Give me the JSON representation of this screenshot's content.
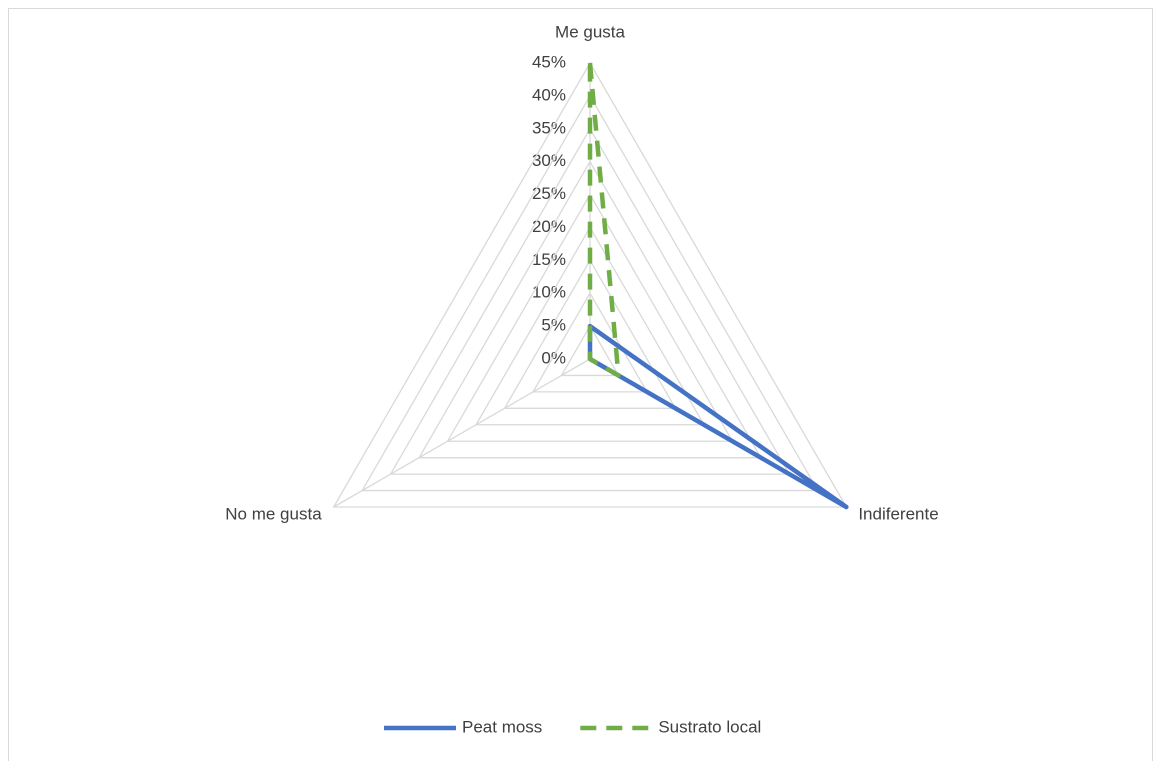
{
  "chart_data": {
    "type": "radar",
    "categories": [
      "Me gusta",
      "Indiferente",
      "No me gusta"
    ],
    "series": [
      {
        "name": "Peat moss",
        "color": "#4472c4",
        "dash": false,
        "values": [
          5,
          45,
          0
        ]
      },
      {
        "name": "Sustrato local",
        "color": "#70ad47",
        "dash": true,
        "values": [
          45,
          5,
          0
        ]
      }
    ],
    "ylim": [
      0,
      45
    ],
    "yticks": [
      {
        "value": 0,
        "label": "0%"
      },
      {
        "value": 5,
        "label": "5%"
      },
      {
        "value": 10,
        "label": "10%"
      },
      {
        "value": 15,
        "label": "15%"
      },
      {
        "value": 20,
        "label": "20%"
      },
      {
        "value": 25,
        "label": "25%"
      },
      {
        "value": 30,
        "label": "30%"
      },
      {
        "value": 35,
        "label": "35%"
      },
      {
        "value": 40,
        "label": "40%"
      },
      {
        "value": 45,
        "label": "45%"
      }
    ],
    "grid": true,
    "legend": "bottom"
  }
}
